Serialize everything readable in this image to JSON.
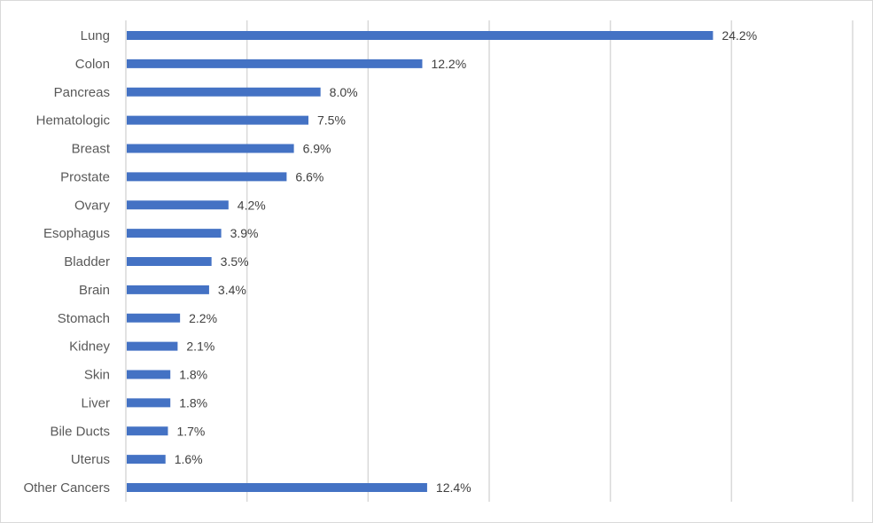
{
  "chart_data": {
    "type": "bar",
    "orientation": "horizontal",
    "title": "",
    "xlabel": "",
    "ylabel": "",
    "xlim": [
      0,
      30
    ],
    "grid": true,
    "bar_color": "#4472C4",
    "categories": [
      "Lung",
      "Colon",
      "Pancreas",
      "Hematologic",
      "Breast",
      "Prostate",
      "Ovary",
      "Esophagus",
      "Bladder",
      "Brain",
      "Stomach",
      "Kidney",
      "Skin",
      "Liver",
      "Bile Ducts",
      "Uterus",
      "Other Cancers"
    ],
    "values": [
      24.2,
      12.2,
      8.0,
      7.5,
      6.9,
      6.6,
      4.2,
      3.9,
      3.5,
      3.4,
      2.2,
      2.1,
      1.8,
      1.8,
      1.7,
      1.6,
      12.4
    ],
    "labels": [
      "24.2%",
      "12.2%",
      "8.0%",
      "7.5%",
      "6.9%",
      "6.6%",
      "4.2%",
      "3.9%",
      "3.5%",
      "3.4%",
      "2.2%",
      "2.1%",
      "1.8%",
      "1.8%",
      "1.7%",
      "1.6%",
      "12.4%"
    ]
  }
}
